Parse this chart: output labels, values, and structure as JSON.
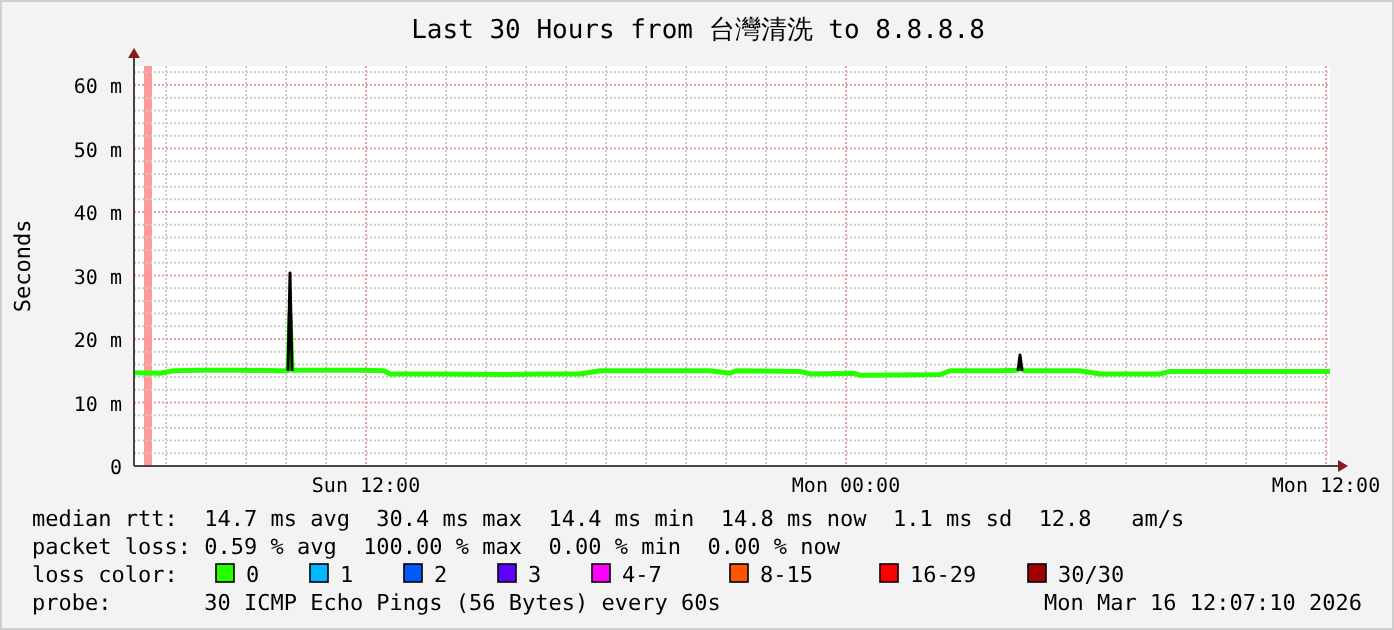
{
  "chart_data": {
    "type": "line",
    "title": "Last 30 Hours from 台灣清洗 to 8.8.8.8",
    "ylabel": "Seconds",
    "xlim": [
      "2026-03-15T06:12",
      "2026-03-16T12:06"
    ],
    "ylim": [
      0,
      63
    ],
    "xticks": [
      {
        "value": "2026-03-15T07:00",
        "label": null
      },
      {
        "value": "2026-03-15T08:00",
        "label": null
      },
      {
        "value": "2026-03-15T09:00",
        "label": null
      },
      {
        "value": "2026-03-15T10:00",
        "label": null
      },
      {
        "value": "2026-03-15T11:00",
        "label": null
      },
      {
        "value": "2026-03-15T12:00",
        "label": "Sun 12:00"
      },
      {
        "value": "2026-03-15T13:00",
        "label": null
      },
      {
        "value": "2026-03-15T14:00",
        "label": null
      },
      {
        "value": "2026-03-15T15:00",
        "label": null
      },
      {
        "value": "2026-03-15T16:00",
        "label": null
      },
      {
        "value": "2026-03-15T17:00",
        "label": null
      },
      {
        "value": "2026-03-15T18:00",
        "label": null
      },
      {
        "value": "2026-03-15T19:00",
        "label": null
      },
      {
        "value": "2026-03-15T20:00",
        "label": null
      },
      {
        "value": "2026-03-15T21:00",
        "label": null
      },
      {
        "value": "2026-03-15T22:00",
        "label": null
      },
      {
        "value": "2026-03-15T23:00",
        "label": null
      },
      {
        "value": "2026-03-16T00:00",
        "label": "Mon 00:00"
      },
      {
        "value": "2026-03-16T01:00",
        "label": null
      },
      {
        "value": "2026-03-16T02:00",
        "label": null
      },
      {
        "value": "2026-03-16T03:00",
        "label": null
      },
      {
        "value": "2026-03-16T04:00",
        "label": null
      },
      {
        "value": "2026-03-16T05:00",
        "label": null
      },
      {
        "value": "2026-03-16T06:00",
        "label": null
      },
      {
        "value": "2026-03-16T07:00",
        "label": null
      },
      {
        "value": "2026-03-16T08:00",
        "label": null
      },
      {
        "value": "2026-03-16T09:00",
        "label": null
      },
      {
        "value": "2026-03-16T10:00",
        "label": null
      },
      {
        "value": "2026-03-16T11:00",
        "label": null
      },
      {
        "value": "2026-03-16T12:00",
        "label": "Mon 12:00"
      }
    ],
    "yticks": [
      0,
      {
        "value": 2,
        "label": null
      },
      {
        "value": 4,
        "label": null
      },
      {
        "value": 6,
        "label": null
      },
      {
        "value": 8,
        "label": null
      },
      {
        "value": 10,
        "label": "10 m"
      },
      {
        "value": 12,
        "label": null
      },
      {
        "value": 14,
        "label": null
      },
      {
        "value": 16,
        "label": null
      },
      {
        "value": 18,
        "label": null
      },
      {
        "value": 20,
        "label": "20 m"
      },
      {
        "value": 22,
        "label": null
      },
      {
        "value": 24,
        "label": null
      },
      {
        "value": 26,
        "label": null
      },
      {
        "value": 28,
        "label": null
      },
      {
        "value": 30,
        "label": "30 m"
      },
      {
        "value": 32,
        "label": null
      },
      {
        "value": 34,
        "label": null
      },
      {
        "value": 36,
        "label": null
      },
      {
        "value": 38,
        "label": null
      },
      {
        "value": 40,
        "label": "40 m"
      },
      {
        "value": 42,
        "label": null
      },
      {
        "value": 44,
        "label": null
      },
      {
        "value": 46,
        "label": null
      },
      {
        "value": 48,
        "label": null
      },
      {
        "value": 50,
        "label": "50 m"
      },
      {
        "value": 52,
        "label": null
      },
      {
        "value": 54,
        "label": null
      },
      {
        "value": 56,
        "label": null
      },
      {
        "value": 58,
        "label": null
      },
      {
        "value": 60,
        "label": "60 m"
      },
      {
        "value": 62,
        "label": null
      }
    ],
    "grid": true,
    "legend": "bottom",
    "legend_title": "loss color:",
    "line_style": "solid",
    "bands": [
      {
        "axis": "x",
        "from": "2026-03-15T06:27",
        "to": "2026-03-15T06:39",
        "color": "#ff9a9a"
      }
    ],
    "series": [
      {
        "name": "0",
        "color": "#26ff00",
        "x": [
          "2026-03-15T06:12",
          "2026-03-15T06:51",
          "2026-03-15T07:12",
          "2026-03-15T07:51",
          "2026-03-15T08:51",
          "2026-03-15T09:51",
          "2026-03-15T10:03",
          "2026-03-15T10:06",
          "2026-03-15T10:09",
          "2026-03-15T10:51",
          "2026-03-15T11:51",
          "2026-03-15T12:27",
          "2026-03-15T12:36",
          "2026-03-15T13:51",
          "2026-03-15T15:21",
          "2026-03-15T16:21",
          "2026-03-15T17:21",
          "2026-03-15T17:51",
          "2026-03-15T19:21",
          "2026-03-15T20:36",
          "2026-03-15T21:06",
          "2026-03-15T21:15",
          "2026-03-15T22:51",
          "2026-03-15T23:06",
          "2026-03-16T00:12",
          "2026-03-16T00:21",
          "2026-03-16T02:21",
          "2026-03-16T02:36",
          "2026-03-16T03:51",
          "2026-03-16T04:18",
          "2026-03-16T04:21",
          "2026-03-16T04:27",
          "2026-03-16T05:51",
          "2026-03-16T06:21",
          "2026-03-16T07:51",
          "2026-03-16T08:06",
          "2026-03-16T09:51",
          "2026-03-16T11:21",
          "2026-03-16T12:06"
        ],
        "values": [
          14.7,
          14.6,
          15.0,
          15.1,
          15.1,
          15.0,
          15.0,
          24.0,
          15.1,
          15.1,
          15.1,
          15.0,
          14.5,
          14.5,
          14.4,
          14.5,
          14.5,
          15.0,
          15.0,
          15.0,
          14.6,
          15.0,
          14.9,
          14.5,
          14.6,
          14.3,
          14.4,
          15.0,
          15.0,
          15.1,
          15.6,
          15.0,
          15.0,
          14.5,
          14.5,
          14.9,
          14.9,
          14.9,
          14.9
        ]
      },
      {
        "color": "#000000",
        "x": [
          "2026-03-15T10:03",
          "2026-03-15T10:06",
          "2026-03-15T10:09"
        ],
        "values": [
          15.0,
          30.4,
          15.0
        ]
      },
      {
        "color": "#000000",
        "x": [
          "2026-03-16T04:18",
          "2026-03-16T04:21",
          "2026-03-16T04:24"
        ],
        "values": [
          15.0,
          17.5,
          15.0
        ]
      },
      {
        "name": "1",
        "color": "#00b8ff"
      },
      {
        "name": "2",
        "color": "#0059ff"
      },
      {
        "name": "3",
        "color": "#5e00ff"
      },
      {
        "name": "4-7",
        "color": "#ff00ff"
      },
      {
        "name": "8-15",
        "color": "#ff5500"
      },
      {
        "name": "16-29",
        "color": "#ff0000"
      },
      {
        "name": "30/30",
        "color": "#a10000"
      }
    ],
    "annotations": [
      "median rtt:  14.7 ms avg  30.4 ms max  14.4 ms min  14.8 ms now  1.1 ms sd  12.8   am/s",
      "packet loss: 0.59 % avg  100.00 % max  0.00 % min  0.00 % now",
      "probe:       30 ICMP Echo Pings (56 Bytes) every 60s",
      "Mon Mar 16 12:07:10 2026"
    ]
  }
}
